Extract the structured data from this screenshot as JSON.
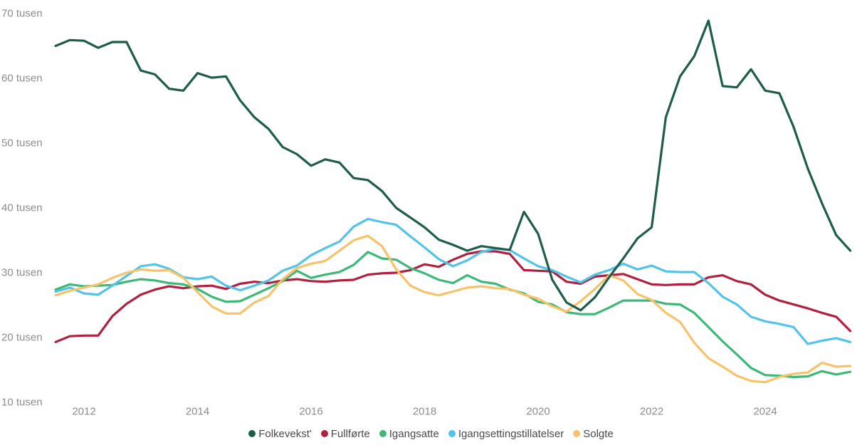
{
  "page": {
    "background": "#ffffff"
  },
  "text_colors": {
    "tick": "#8d8d8d",
    "legend": "#4a4a4a"
  },
  "chart_data": {
    "type": "line",
    "title": "",
    "xlabel": "",
    "ylabel": "",
    "x_unit": "year (quarterly points)",
    "y_unit": "tusen",
    "grid": false,
    "legend_position": "bottom-center",
    "xlim": [
      2011.5,
      2025.5
    ],
    "ylim": [
      10,
      70
    ],
    "x": [
      2011.5,
      2011.75,
      2012.0,
      2012.25,
      2012.5,
      2012.75,
      2013.0,
      2013.25,
      2013.5,
      2013.75,
      2014.0,
      2014.25,
      2014.5,
      2014.75,
      2015.0,
      2015.25,
      2015.5,
      2015.75,
      2016.0,
      2016.25,
      2016.5,
      2016.75,
      2017.0,
      2017.25,
      2017.5,
      2017.75,
      2018.0,
      2018.25,
      2018.5,
      2018.75,
      2019.0,
      2019.25,
      2019.5,
      2019.75,
      2020.0,
      2020.25,
      2020.5,
      2020.75,
      2021.0,
      2021.25,
      2021.5,
      2021.75,
      2022.0,
      2022.25,
      2022.5,
      2022.75,
      2023.0,
      2023.25,
      2023.5,
      2023.75,
      2024.0,
      2024.25,
      2024.5,
      2024.75,
      2025.0,
      2025.25,
      2025.5
    ],
    "series": [
      {
        "id": "folkevekst",
        "name": "Folkevekst'",
        "color": "#1e5c4b",
        "z": 5,
        "values": [
          65.0,
          65.9,
          65.8,
          64.7,
          65.6,
          65.6,
          61.2,
          60.6,
          58.4,
          58.1,
          60.8,
          60.1,
          60.3,
          56.6,
          54.0,
          52.2,
          49.4,
          48.3,
          46.5,
          47.5,
          47.0,
          44.6,
          44.3,
          42.6,
          40.0,
          38.5,
          37.0,
          35.1,
          34.3,
          33.4,
          34.1,
          33.8,
          33.5,
          39.4,
          36.0,
          28.9,
          25.4,
          24.2,
          26.2,
          29.3,
          32.2,
          35.3,
          37.0,
          54.0,
          60.3,
          63.4,
          68.9,
          58.8,
          58.6,
          61.4,
          58.1,
          57.7,
          52.5,
          46.1,
          40.7,
          35.8,
          33.4
        ]
      },
      {
        "id": "fullforte",
        "name": "Fullførte",
        "color": "#b02140",
        "z": 1,
        "values": [
          19.3,
          20.2,
          20.3,
          20.3,
          23.3,
          25.2,
          26.6,
          27.4,
          27.9,
          27.6,
          27.9,
          28.0,
          27.5,
          28.3,
          28.6,
          28.4,
          28.8,
          29.0,
          28.7,
          28.6,
          28.8,
          28.9,
          29.7,
          29.9,
          30.0,
          30.4,
          31.3,
          30.9,
          32.0,
          32.9,
          33.3,
          33.3,
          32.9,
          30.4,
          30.3,
          30.2,
          28.6,
          28.3,
          29.4,
          29.6,
          29.8,
          29.0,
          28.2,
          28.1,
          28.2,
          28.2,
          29.3,
          29.6,
          28.7,
          28.2,
          26.6,
          25.7,
          25.1,
          24.5,
          23.8,
          23.2,
          21.0
        ]
      },
      {
        "id": "igangsatte",
        "name": "Igangsatte",
        "color": "#3eb878",
        "z": 2,
        "values": [
          27.4,
          28.2,
          27.9,
          28.0,
          28.1,
          28.6,
          29.0,
          28.8,
          28.4,
          28.2,
          27.5,
          26.3,
          25.5,
          25.6,
          26.6,
          27.6,
          28.7,
          30.3,
          29.2,
          29.7,
          30.1,
          31.2,
          33.2,
          32.2,
          32.0,
          30.7,
          29.9,
          28.9,
          28.4,
          29.6,
          28.6,
          28.3,
          27.4,
          26.8,
          25.5,
          25.1,
          23.9,
          23.6,
          23.6,
          24.6,
          25.7,
          25.7,
          25.7,
          25.2,
          25.1,
          23.8,
          21.6,
          19.4,
          17.4,
          15.3,
          14.2,
          14.1,
          13.9,
          14.0,
          14.8,
          14.3,
          14.7
        ]
      },
      {
        "id": "igangsettingstillatelser",
        "name": "Igangsettingstillatelser",
        "color": "#53c3e9",
        "z": 3,
        "values": [
          27.1,
          27.7,
          26.8,
          26.6,
          28.0,
          29.5,
          31.0,
          31.3,
          30.6,
          29.3,
          29.0,
          29.4,
          28.0,
          27.3,
          28.0,
          28.8,
          30.3,
          31.1,
          32.7,
          33.8,
          34.8,
          37.1,
          38.3,
          37.8,
          37.4,
          35.6,
          33.9,
          32.1,
          31.0,
          31.9,
          33.2,
          33.7,
          33.5,
          32.2,
          31.0,
          30.4,
          29.4,
          28.5,
          29.7,
          30.4,
          31.4,
          30.5,
          31.1,
          30.2,
          30.1,
          30.1,
          28.4,
          26.3,
          25.1,
          23.2,
          22.5,
          22.1,
          21.6,
          19.0,
          19.5,
          19.9,
          19.3
        ]
      },
      {
        "id": "solgte",
        "name": "Solgte",
        "color": "#f6c36a",
        "z": 4,
        "values": [
          26.5,
          27.2,
          27.7,
          28.2,
          29.2,
          30.0,
          30.5,
          30.3,
          30.4,
          29.2,
          27.0,
          24.8,
          23.7,
          23.7,
          25.4,
          26.4,
          29.0,
          30.7,
          31.4,
          31.8,
          33.4,
          35.0,
          35.7,
          34.1,
          30.5,
          28.0,
          27.0,
          26.5,
          27.1,
          27.7,
          27.9,
          27.6,
          27.5,
          26.6,
          26.0,
          24.8,
          24.0,
          25.6,
          27.5,
          29.6,
          28.8,
          26.7,
          25.8,
          23.8,
          22.4,
          19.2,
          16.8,
          15.5,
          14.1,
          13.3,
          13.1,
          13.9,
          14.4,
          14.6,
          16.1,
          15.5,
          15.6
        ]
      }
    ],
    "yticks": [
      {
        "value": 10,
        "label": "10 tusen"
      },
      {
        "value": 20,
        "label": "20 tusen"
      },
      {
        "value": 30,
        "label": "30 tusen"
      },
      {
        "value": 40,
        "label": "40 tusen"
      },
      {
        "value": 50,
        "label": "50 tusen"
      },
      {
        "value": 60,
        "label": "60 tusen"
      },
      {
        "value": 70,
        "label": "70 tusen"
      }
    ],
    "xticks": [
      {
        "value": 2012,
        "label": "2012"
      },
      {
        "value": 2014,
        "label": "2014"
      },
      {
        "value": 2016,
        "label": "2016"
      },
      {
        "value": 2018,
        "label": "2018"
      },
      {
        "value": 2020,
        "label": "2020"
      },
      {
        "value": 2022,
        "label": "2022"
      },
      {
        "value": 2024,
        "label": "2024"
      }
    ]
  }
}
